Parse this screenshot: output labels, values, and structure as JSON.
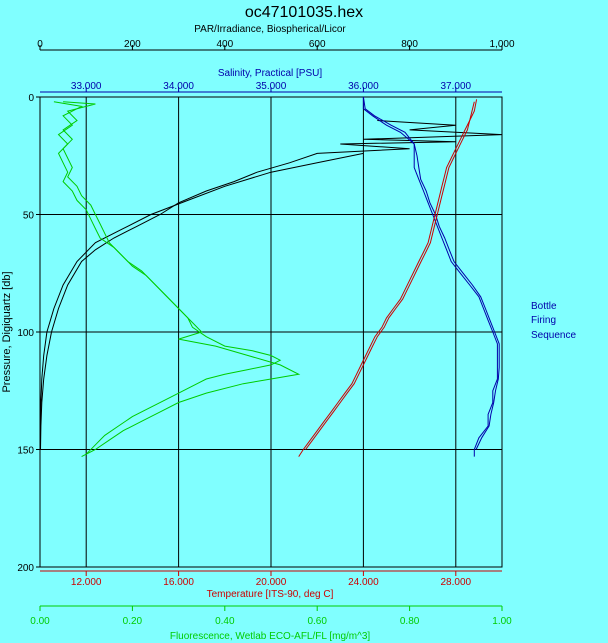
{
  "chart_data": {
    "type": "line",
    "title": "oc47101035.hex",
    "y_axis": {
      "label": "Pressure, Digiquartz [db]",
      "range": [
        0,
        200
      ],
      "ticks": [
        0,
        50,
        100,
        150,
        200
      ],
      "inverted": true,
      "color": "#000000"
    },
    "par_axis": {
      "label": "PAR/Irradiance, Biospherical/Licor",
      "range": [
        0,
        1000
      ],
      "ticks": [
        "0",
        "200",
        "400",
        "600",
        "800",
        "1,000"
      ],
      "color": "#000000"
    },
    "salinity_axis": {
      "label": "Salinity, Practical [PSU]",
      "range": [
        32.5,
        37.5
      ],
      "ticks": [
        "33.000",
        "34.000",
        "35.000",
        "36.000",
        "37.000"
      ],
      "color": "#0000aa"
    },
    "temperature_axis": {
      "label": "Temperature [ITS-90, deg C]",
      "range": [
        10,
        30
      ],
      "ticks": [
        "12.000",
        "16.000",
        "20.000",
        "24.000",
        "28.000"
      ],
      "color": "#cc0000"
    },
    "fluorescence_axis": {
      "label": "Fluorescence, Wetlab ECO-AFL/FL [mg/m^3]",
      "range": [
        0,
        1
      ],
      "ticks": [
        "0.00",
        "0.20",
        "0.40",
        "0.60",
        "0.80",
        "1.00"
      ],
      "color": "#00cc00"
    },
    "legend": {
      "lines": [
        "Bottle",
        "Firing",
        "Sequence"
      ],
      "color": "#0000aa"
    },
    "grid": true,
    "series": [
      {
        "name": "PAR/Irradiance",
        "color": "#000000",
        "axis": "par",
        "down": [
          [
            730,
            10
          ],
          [
            900,
            12
          ],
          [
            800,
            14
          ],
          [
            1000,
            16
          ],
          [
            700,
            18
          ],
          [
            900,
            19
          ],
          [
            650,
            20
          ],
          [
            800,
            22
          ],
          [
            600,
            24
          ],
          [
            540,
            28
          ],
          [
            470,
            32
          ],
          [
            420,
            36
          ],
          [
            360,
            40
          ],
          [
            300,
            45
          ],
          [
            260,
            50
          ],
          [
            210,
            55
          ],
          [
            160,
            60
          ],
          [
            120,
            65
          ],
          [
            90,
            70
          ],
          [
            60,
            80
          ],
          [
            40,
            90
          ],
          [
            25,
            100
          ],
          [
            15,
            110
          ],
          [
            8,
            120
          ],
          [
            4,
            130
          ],
          [
            2,
            140
          ],
          [
            1,
            150
          ]
        ],
        "up": [
          [
            700,
            24
          ],
          [
            600,
            28
          ],
          [
            500,
            32
          ],
          [
            400,
            38
          ],
          [
            320,
            44
          ],
          [
            240,
            50
          ],
          [
            180,
            56
          ],
          [
            120,
            62
          ],
          [
            80,
            70
          ],
          [
            50,
            80
          ],
          [
            30,
            90
          ],
          [
            15,
            100
          ],
          [
            8,
            110
          ],
          [
            4,
            120
          ],
          [
            2,
            130
          ],
          [
            1,
            140
          ],
          [
            0,
            150
          ]
        ]
      },
      {
        "name": "Salinity",
        "color": "#0000aa",
        "axis": "salinity",
        "down": [
          [
            36.0,
            0
          ],
          [
            36.0,
            5
          ],
          [
            36.1,
            8
          ],
          [
            36.25,
            12
          ],
          [
            36.4,
            15
          ],
          [
            36.55,
            20
          ],
          [
            36.55,
            25
          ],
          [
            36.55,
            30
          ],
          [
            36.6,
            35
          ],
          [
            36.65,
            40
          ],
          [
            36.7,
            45
          ],
          [
            36.75,
            50
          ],
          [
            36.8,
            55
          ],
          [
            36.85,
            60
          ],
          [
            36.9,
            65
          ],
          [
            36.95,
            70
          ],
          [
            37.05,
            75
          ],
          [
            37.15,
            80
          ],
          [
            37.25,
            85
          ],
          [
            37.3,
            90
          ],
          [
            37.35,
            95
          ],
          [
            37.4,
            100
          ],
          [
            37.45,
            105
          ],
          [
            37.45,
            110
          ],
          [
            37.45,
            115
          ],
          [
            37.45,
            120
          ],
          [
            37.4,
            125
          ],
          [
            37.4,
            130
          ],
          [
            37.35,
            135
          ],
          [
            37.35,
            140
          ],
          [
            37.25,
            145
          ],
          [
            37.2,
            150
          ],
          [
            37.2,
            153
          ]
        ],
        "up": [
          [
            36.0,
            0
          ],
          [
            36.02,
            5
          ],
          [
            36.12,
            8
          ],
          [
            36.3,
            12
          ],
          [
            36.45,
            15
          ],
          [
            36.55,
            20
          ],
          [
            36.58,
            25
          ],
          [
            36.6,
            30
          ],
          [
            36.62,
            35
          ],
          [
            36.68,
            40
          ],
          [
            36.72,
            45
          ],
          [
            36.78,
            50
          ],
          [
            36.82,
            55
          ],
          [
            36.88,
            60
          ],
          [
            36.93,
            65
          ],
          [
            36.98,
            70
          ],
          [
            37.08,
            75
          ],
          [
            37.18,
            80
          ],
          [
            37.27,
            85
          ],
          [
            37.32,
            90
          ],
          [
            37.37,
            95
          ],
          [
            37.42,
            100
          ],
          [
            37.47,
            105
          ],
          [
            37.47,
            110
          ],
          [
            37.47,
            115
          ],
          [
            37.46,
            120
          ],
          [
            37.43,
            125
          ],
          [
            37.41,
            130
          ],
          [
            37.38,
            135
          ],
          [
            37.36,
            140
          ],
          [
            37.28,
            145
          ],
          [
            37.22,
            150
          ]
        ]
      },
      {
        "name": "Temperature",
        "color": "#cc0000",
        "axis": "temperature",
        "down": [
          [
            28.8,
            2
          ],
          [
            28.7,
            6
          ],
          [
            28.6,
            10
          ],
          [
            28.4,
            14
          ],
          [
            28.2,
            18
          ],
          [
            28.0,
            22
          ],
          [
            27.8,
            26
          ],
          [
            27.6,
            30
          ],
          [
            27.5,
            34
          ],
          [
            27.4,
            38
          ],
          [
            27.3,
            42
          ],
          [
            27.2,
            46
          ],
          [
            27.1,
            50
          ],
          [
            27.0,
            54
          ],
          [
            26.9,
            58
          ],
          [
            26.8,
            62
          ],
          [
            26.6,
            66
          ],
          [
            26.4,
            70
          ],
          [
            26.2,
            74
          ],
          [
            26.0,
            78
          ],
          [
            25.8,
            82
          ],
          [
            25.6,
            86
          ],
          [
            25.3,
            90
          ],
          [
            25.0,
            94
          ],
          [
            24.8,
            98
          ],
          [
            24.5,
            102
          ],
          [
            24.3,
            106
          ],
          [
            24.1,
            110
          ],
          [
            23.9,
            114
          ],
          [
            23.7,
            118
          ],
          [
            23.5,
            122
          ],
          [
            23.2,
            126
          ],
          [
            22.9,
            130
          ],
          [
            22.6,
            134
          ],
          [
            22.3,
            138
          ],
          [
            22.0,
            142
          ],
          [
            21.7,
            146
          ],
          [
            21.4,
            150
          ],
          [
            21.2,
            153
          ]
        ],
        "up": [
          [
            28.9,
            1
          ],
          [
            28.8,
            6
          ],
          [
            28.6,
            10
          ],
          [
            28.5,
            14
          ],
          [
            28.3,
            18
          ],
          [
            28.1,
            22
          ],
          [
            27.9,
            26
          ],
          [
            27.7,
            30
          ],
          [
            27.6,
            34
          ],
          [
            27.5,
            38
          ],
          [
            27.4,
            42
          ],
          [
            27.3,
            46
          ],
          [
            27.2,
            50
          ],
          [
            27.1,
            54
          ],
          [
            27.0,
            58
          ],
          [
            26.9,
            62
          ],
          [
            26.7,
            66
          ],
          [
            26.5,
            70
          ],
          [
            26.3,
            74
          ],
          [
            26.1,
            78
          ],
          [
            25.9,
            82
          ],
          [
            25.7,
            86
          ],
          [
            25.4,
            90
          ],
          [
            25.1,
            94
          ],
          [
            24.9,
            98
          ],
          [
            24.6,
            102
          ],
          [
            24.4,
            106
          ],
          [
            24.2,
            110
          ],
          [
            24.0,
            114
          ],
          [
            23.8,
            118
          ],
          [
            23.6,
            122
          ],
          [
            23.3,
            126
          ],
          [
            23.0,
            130
          ],
          [
            22.7,
            134
          ],
          [
            22.4,
            138
          ],
          [
            22.1,
            142
          ],
          [
            21.8,
            146
          ],
          [
            21.5,
            150
          ]
        ]
      },
      {
        "name": "Fluorescence",
        "color": "#00cc00",
        "axis": "fluorescence",
        "down": [
          [
            0.05,
            2
          ],
          [
            0.12,
            3
          ],
          [
            0.06,
            6
          ],
          [
            0.08,
            10
          ],
          [
            0.05,
            14
          ],
          [
            0.07,
            18
          ],
          [
            0.05,
            22
          ],
          [
            0.06,
            26
          ],
          [
            0.07,
            30
          ],
          [
            0.06,
            34
          ],
          [
            0.08,
            38
          ],
          [
            0.09,
            42
          ],
          [
            0.11,
            46
          ],
          [
            0.12,
            50
          ],
          [
            0.13,
            54
          ],
          [
            0.14,
            58
          ],
          [
            0.15,
            62
          ],
          [
            0.17,
            66
          ],
          [
            0.19,
            70
          ],
          [
            0.22,
            74
          ],
          [
            0.24,
            78
          ],
          [
            0.26,
            82
          ],
          [
            0.28,
            86
          ],
          [
            0.3,
            90
          ],
          [
            0.32,
            94
          ],
          [
            0.33,
            98
          ],
          [
            0.36,
            102
          ],
          [
            0.4,
            106
          ],
          [
            0.46,
            108
          ],
          [
            0.5,
            110
          ],
          [
            0.52,
            112
          ],
          [
            0.5,
            114
          ],
          [
            0.45,
            116
          ],
          [
            0.4,
            118
          ],
          [
            0.36,
            120
          ],
          [
            0.32,
            124
          ],
          [
            0.28,
            128
          ],
          [
            0.24,
            132
          ],
          [
            0.2,
            136
          ],
          [
            0.17,
            140
          ],
          [
            0.14,
            144
          ],
          [
            0.12,
            148
          ],
          [
            0.1,
            152
          ]
        ],
        "up": [
          [
            0.03,
            2
          ],
          [
            0.09,
            4
          ],
          [
            0.05,
            8
          ],
          [
            0.07,
            12
          ],
          [
            0.04,
            16
          ],
          [
            0.06,
            20
          ],
          [
            0.04,
            24
          ],
          [
            0.05,
            28
          ],
          [
            0.06,
            32
          ],
          [
            0.05,
            36
          ],
          [
            0.07,
            40
          ],
          [
            0.08,
            44
          ],
          [
            0.1,
            48
          ],
          [
            0.11,
            52
          ],
          [
            0.12,
            56
          ],
          [
            0.13,
            60
          ],
          [
            0.16,
            64
          ],
          [
            0.18,
            68
          ],
          [
            0.2,
            72
          ],
          [
            0.23,
            76
          ],
          [
            0.25,
            80
          ],
          [
            0.27,
            84
          ],
          [
            0.29,
            88
          ],
          [
            0.31,
            92
          ],
          [
            0.33,
            96
          ],
          [
            0.35,
            100
          ],
          [
            0.3,
            103
          ],
          [
            0.38,
            106
          ],
          [
            0.45,
            110
          ],
          [
            0.52,
            114
          ],
          [
            0.56,
            118
          ],
          [
            0.5,
            120
          ],
          [
            0.44,
            122
          ],
          [
            0.36,
            126
          ],
          [
            0.3,
            130
          ],
          [
            0.26,
            134
          ],
          [
            0.22,
            138
          ],
          [
            0.18,
            142
          ],
          [
            0.15,
            146
          ],
          [
            0.12,
            150
          ],
          [
            0.09,
            153
          ]
        ]
      }
    ]
  }
}
